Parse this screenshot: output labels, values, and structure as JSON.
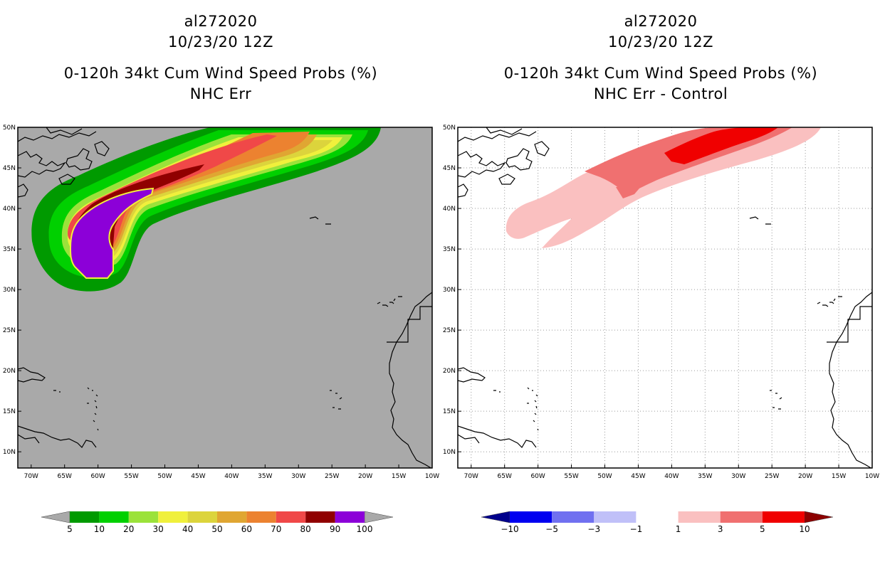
{
  "left_panel": {
    "title_line1": "al272020",
    "title_line2": "10/23/20 12Z",
    "title_line3": "0-120h 34kt Cum Wind Speed Probs (%)",
    "title_line4": "NHC Err",
    "background_color": "#a9a9a9"
  },
  "right_panel": {
    "title_line1": "al272020",
    "title_line2": "10/23/20 12Z",
    "title_line3": "0-120h 34kt Cum Wind Speed Probs (%)",
    "title_line4": "NHC Err - Control",
    "background_color": "#ffffff"
  },
  "axes": {
    "lat_labels": [
      "50N",
      "45N",
      "40N",
      "35N",
      "30N",
      "25N",
      "20N",
      "15N",
      "10N"
    ],
    "lon_labels": [
      "70W",
      "65W",
      "60W",
      "55W",
      "50W",
      "45W",
      "40W",
      "35W",
      "30W",
      "25W",
      "20W",
      "15W",
      "10W"
    ],
    "lat_range": [
      8,
      50
    ],
    "lon_range": [
      -72,
      -10
    ]
  },
  "left_colorbar": {
    "labels": [
      "5",
      "10",
      "20",
      "30",
      "40",
      "50",
      "60",
      "70",
      "80",
      "90",
      "100"
    ],
    "colors": [
      "#009a00",
      "#00d000",
      "#9be23a",
      "#f0f03c",
      "#dcd43c",
      "#e0a632",
      "#ec8230",
      "#f04848",
      "#900000",
      "#8c00d8"
    ],
    "under_color": "#a9a9a9",
    "over_color": "#a9a9a9"
  },
  "right_colorbar": {
    "labels": [
      "-10",
      "-5",
      "-3",
      "-1",
      "1",
      "3",
      "5",
      "10"
    ],
    "colors": [
      "#0000f0",
      "#7070f0",
      "#c0c0f8",
      "#ffffff",
      "#fac0c0",
      "#f07070",
      "#f00000"
    ],
    "under_color": "#00008c",
    "over_color": "#8c0000"
  }
}
